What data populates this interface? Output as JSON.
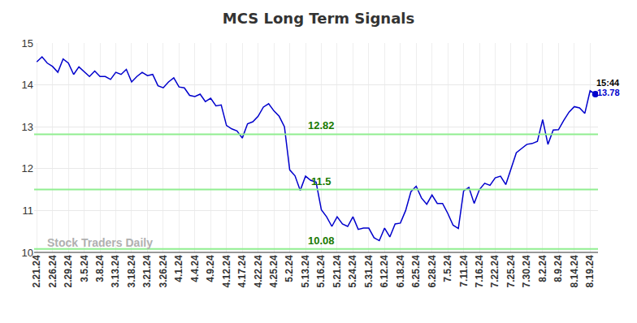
{
  "chart_data": {
    "type": "line",
    "title": "MCS Long Term Signals",
    "color": "#0000cc",
    "grid": true,
    "ylim": [
      10,
      15
    ],
    "yticks": [
      10,
      11,
      12,
      13,
      14,
      15
    ],
    "categories": [
      "2.21.24",
      null,
      null,
      "2.26.24",
      null,
      null,
      "2.29.24",
      null,
      null,
      "3.5.24",
      null,
      null,
      "3.8.24",
      null,
      null,
      "3.13.24",
      null,
      null,
      "3.18.24",
      null,
      null,
      "3.21.24",
      null,
      null,
      "3.26.24",
      null,
      null,
      "4.1.24",
      null,
      null,
      "4.4.24",
      null,
      null,
      "4.9.24",
      null,
      null,
      "4.12.24",
      null,
      null,
      "4.17.24",
      null,
      null,
      "4.22.24",
      null,
      null,
      "4.25.24",
      null,
      null,
      "5.2.24",
      null,
      null,
      "5.13.24",
      null,
      null,
      "5.16.24",
      null,
      null,
      "5.21.24",
      null,
      null,
      "5.24.24",
      null,
      null,
      "5.31.24",
      null,
      null,
      "6.12.24",
      null,
      null,
      "6.18.24",
      null,
      null,
      "6.25.24",
      null,
      null,
      "6.28.24",
      null,
      null,
      "7.5.24",
      null,
      null,
      "7.11.24",
      null,
      null,
      "7.16.24",
      null,
      null,
      "7.22.24",
      null,
      null,
      "7.25.24",
      null,
      null,
      "7.30.24",
      null,
      null,
      "8.2.24",
      null,
      null,
      "8.9.24",
      null,
      null,
      "8.14.24",
      null,
      null,
      "8.19.24",
      null
    ],
    "values": [
      14.55,
      14.67,
      14.52,
      14.44,
      14.3,
      14.62,
      14.52,
      14.25,
      14.43,
      14.32,
      14.2,
      14.33,
      14.2,
      14.2,
      14.13,
      14.3,
      14.25,
      14.37,
      14.07,
      14.2,
      14.3,
      14.22,
      14.25,
      13.98,
      13.93,
      14.07,
      14.17,
      13.95,
      13.93,
      13.75,
      13.72,
      13.78,
      13.6,
      13.68,
      13.5,
      13.52,
      13.03,
      12.95,
      12.9,
      12.73,
      13.07,
      13.12,
      13.25,
      13.47,
      13.55,
      13.38,
      13.25,
      13.0,
      11.97,
      11.83,
      11.48,
      11.82,
      11.72,
      11.68,
      11.02,
      10.85,
      10.62,
      10.85,
      10.68,
      10.62,
      10.85,
      10.55,
      10.58,
      10.58,
      10.35,
      10.28,
      10.58,
      10.37,
      10.68,
      10.7,
      11.0,
      11.45,
      11.58,
      11.3,
      11.15,
      11.37,
      11.17,
      11.17,
      10.93,
      10.65,
      10.57,
      11.47,
      11.55,
      11.17,
      11.5,
      11.65,
      11.6,
      11.78,
      11.82,
      11.62,
      12.02,
      12.38,
      12.48,
      12.58,
      12.6,
      12.65,
      13.17,
      12.58,
      12.92,
      12.93,
      13.15,
      13.35,
      13.48,
      13.45,
      13.32,
      13.86,
      13.78
    ],
    "levels": [
      12.82,
      11.5,
      10.08
    ],
    "level_color": "#90ee90",
    "level_label_color": "#1a7a00",
    "last_time": "15:44",
    "last_value": 13.78,
    "watermark": "Stock Traders Daily"
  }
}
